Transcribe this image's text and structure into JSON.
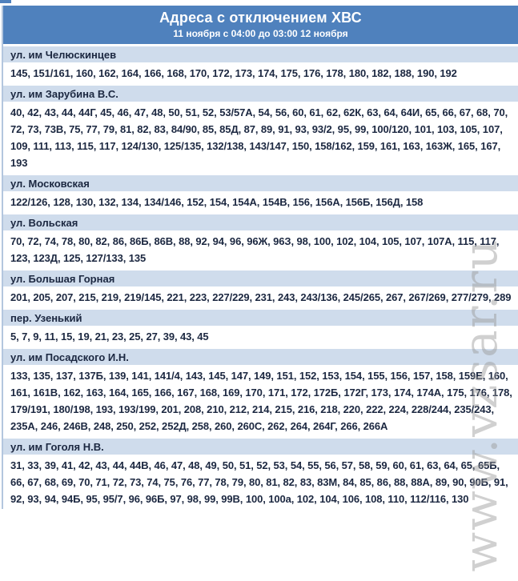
{
  "header": {
    "title": "Адреса с отключением ХВС",
    "subtitle": "11 ноября с 04:00 до 03:00 12 ноября"
  },
  "watermark": {
    "text": "www.vzsar.ru"
  },
  "colors": {
    "header_bg": "#4f81bd",
    "street_row_bg": "#cfdcec",
    "text": "#1b2740",
    "left_border": "#b3c6de"
  },
  "sections": [
    {
      "street": "ул. им Челюскинцев",
      "numbers": "145, 151/161, 160, 162, 164, 166, 168, 170, 172, 173, 174, 175, 176, 178, 180, 182, 188, 190, 192"
    },
    {
      "street": "ул. им Зарубина В.С.",
      "numbers": "40, 42, 43, 44, 44Г, 45, 46, 47, 48, 50, 51, 52, 53/57А, 54, 56, 60, 61, 62, 62К, 63, 64, 64И, 65, 66, 67, 68, 70, 72, 73, 73В, 75, 77, 79, 81, 82, 83, 84/90, 85, 85Д, 87, 89, 91, 93, 93/2, 95, 99, 100/120, 101, 103, 105, 107, 109, 111, 113, 115, 117, 124/130, 125/135, 132/138, 143/147, 150, 158/162, 159, 161, 163, 163Ж, 165, 167, 193"
    },
    {
      "street": "ул. Московская",
      "numbers": "122/126, 128, 130, 132, 134, 134/146, 152, 154, 154А, 154В, 156, 156А, 156Б, 156Д, 158"
    },
    {
      "street": "ул. Вольская",
      "numbers": "70, 72, 74, 78, 80, 82, 86, 86Б, 86В, 88, 92, 94, 96, 96Ж, 96З, 98, 100, 102, 104, 105, 107, 107А, 115, 117, 123, 123Д, 125, 127/133, 135"
    },
    {
      "street": "ул. Большая Горная",
      "numbers": "201, 205, 207, 215, 219, 219/145, 221, 223, 227/229, 231, 243, 243/136, 245/265, 267, 267/269, 277/279, 289"
    },
    {
      "street": "пер. Узенький",
      "numbers": "5, 7, 9, 11, 15, 19, 21, 23, 25, 27, 39, 43, 45"
    },
    {
      "street": "ул. им Посадского И.Н.",
      "numbers": "133, 135, 137, 137Б, 139, 141, 141/4, 143, 145, 147, 149, 151, 152, 153, 154, 155, 156, 157, 158, 159Е, 160, 161, 161В, 162, 163, 164, 165, 166, 167, 168, 169, 170, 171, 172, 172Б, 172Г, 173, 174, 174А, 175, 176, 178, 179/191, 180/198, 193, 193/199, 201, 208, 210, 212, 214, 215, 216, 218, 220, 222, 224, 228/244, 235/243, 235А, 246, 246В, 248, 250, 252, 252Д, 258, 260, 260С, 262, 264, 264Г, 266, 266А"
    },
    {
      "street": "ул. им Гоголя Н.В.",
      "numbers": "31, 33, 39, 41, 42, 43, 44, 44В, 46, 47, 48, 49, 50, 51, 52, 53, 54, 55, 56, 57, 58, 59, 60, 61, 63, 64, 65, 65Б, 66, 67, 68, 69, 70, 71, 72, 73, 74, 75, 76, 77, 78, 79, 80, 81, 82, 83, 83М, 84, 85, 86, 88, 88А, 89, 90, 90Б, 91, 92, 93, 94, 94Б, 95, 95/7, 96, 96Б, 97, 98, 99, 99В, 100, 100а, 102, 104, 106, 108, 110, 112/116, 130"
    }
  ]
}
